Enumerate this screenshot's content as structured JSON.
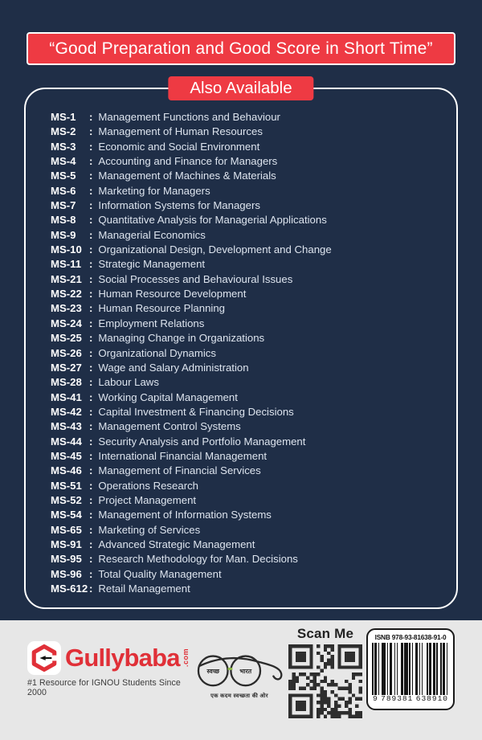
{
  "banner": {
    "text": "“Good Preparation and Good Score in Short Time”"
  },
  "also_available": {
    "label": "Also Available"
  },
  "course_list": {
    "separator": ":",
    "items": [
      {
        "code": "MS-1",
        "title": "Management Functions and Behaviour"
      },
      {
        "code": "MS-2",
        "title": "Management of Human Resources"
      },
      {
        "code": "MS-3",
        "title": "Economic and Social Environment"
      },
      {
        "code": "MS-4",
        "title": "Accounting and Finance for Managers"
      },
      {
        "code": "MS-5",
        "title": "Management of Machines & Materials"
      },
      {
        "code": "MS-6",
        "title": "Marketing for Managers"
      },
      {
        "code": "MS-7",
        "title": "Information Systems for Managers"
      },
      {
        "code": "MS-8",
        "title": "Quantitative Analysis for Managerial Applications"
      },
      {
        "code": "MS-9",
        "title": "Managerial Economics"
      },
      {
        "code": "MS-10",
        "title": "Organizational Design, Development and Change"
      },
      {
        "code": "MS-11",
        "title": "Strategic Management"
      },
      {
        "code": "MS-21",
        "title": "Social Processes and Behavioural Issues"
      },
      {
        "code": "MS-22",
        "title": "Human Resource Development"
      },
      {
        "code": "MS-23",
        "title": "Human Resource Planning"
      },
      {
        "code": "MS-24",
        "title": "Employment Relations"
      },
      {
        "code": "MS-25",
        "title": "Managing Change in Organizations"
      },
      {
        "code": "MS-26",
        "title": "Organizational Dynamics"
      },
      {
        "code": "MS-27",
        "title": "Wage and Salary Administration"
      },
      {
        "code": "MS-28",
        "title": "Labour Laws"
      },
      {
        "code": "MS-41",
        "title": "Working Capital Management"
      },
      {
        "code": "MS-42",
        "title": "Capital Investment & Financing Decisions"
      },
      {
        "code": "MS-43",
        "title": "Management Control Systems"
      },
      {
        "code": "MS-44",
        "title": "Security Analysis and Portfolio Management"
      },
      {
        "code": "MS-45",
        "title": "International Financial Management"
      },
      {
        "code": "MS-46",
        "title": "Management of Financial Services"
      },
      {
        "code": "MS-51",
        "title": "Operations Research"
      },
      {
        "code": "MS-52",
        "title": "Project Management"
      },
      {
        "code": "MS-54",
        "title": "Management of Information Systems"
      },
      {
        "code": "MS-65",
        "title": "Marketing of Services"
      },
      {
        "code": "MS-91",
        "title": "Advanced Strategic Management"
      },
      {
        "code": "MS-95",
        "title": "Research Methodology for Man. Decisions"
      },
      {
        "code": "MS-96",
        "title": "Total Quality Management"
      },
      {
        "code": "MS-612",
        "title": "Retail Management"
      }
    ]
  },
  "footer": {
    "logo": {
      "brand": "Gullybaba",
      "domain": ".com",
      "tagline": "#1 Resource for IGNOU Students Since 2000"
    },
    "swachh_bharat": {
      "left_lens": "स्वच्छ",
      "right_lens": "भारत",
      "tagline": "एक कदम स्वच्छता की ओर"
    },
    "scan_me": {
      "label": "Scan Me"
    },
    "barcode": {
      "isbn_label": "ISNB 978-93-81638-91-0",
      "digits": "9 789381 638910"
    }
  },
  "colors": {
    "background": "#1f2e47",
    "accent_red": "#ee3a43",
    "brand_red": "#e03038",
    "footer_bg": "#e7e7e7",
    "list_text": "#dde4ee"
  }
}
